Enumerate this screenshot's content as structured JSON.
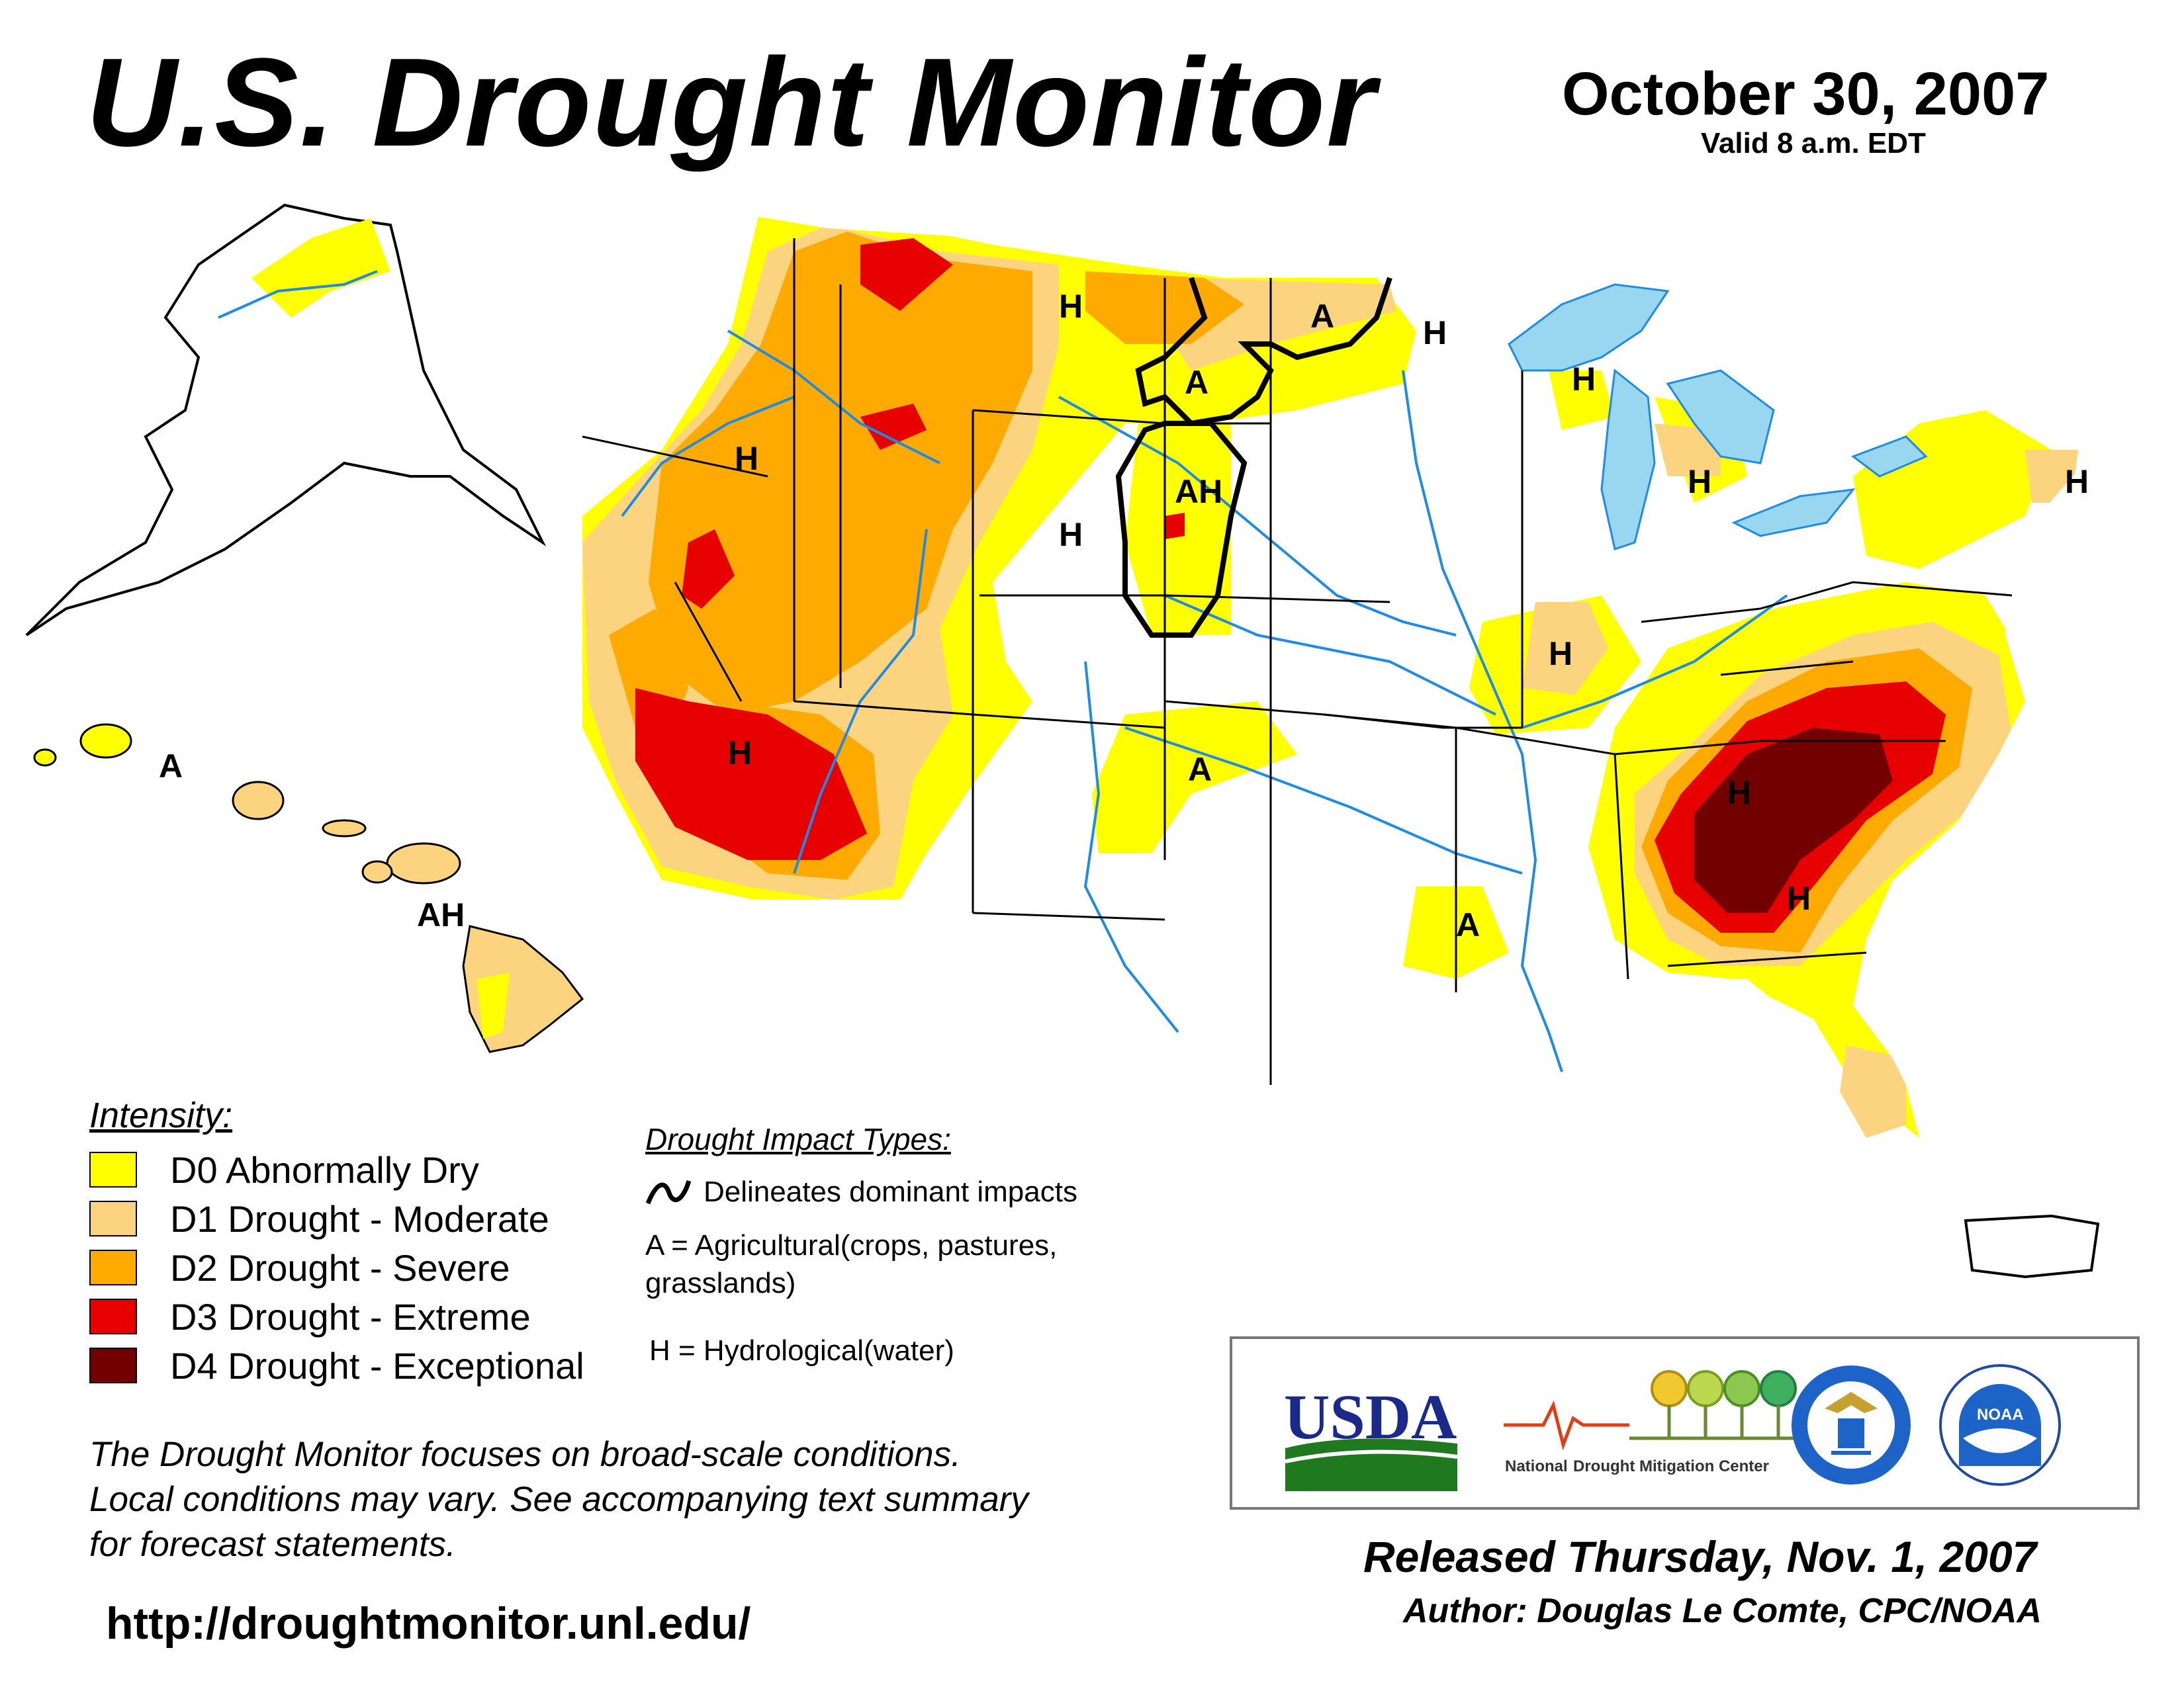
{
  "header": {
    "title": "U.S. Drought Monitor",
    "date": "October 30, 2007",
    "valid": "Valid 8 a.m. EDT"
  },
  "colors": {
    "d0": "#ffff00",
    "d1": "#fcd37f",
    "d2": "#ffaa00",
    "d3": "#e60000",
    "d4": "#730000",
    "water": "#99d7f0",
    "rivers": "#1e8ce6",
    "counties": "#a8a8a8"
  },
  "legend": {
    "title": "Intensity:",
    "items": [
      {
        "label": "D0 Abnormally Dry",
        "color": "#ffff00"
      },
      {
        "label": "D1 Drought - Moderate",
        "color": "#fcd37f"
      },
      {
        "label": "D2 Drought - Severe",
        "color": "#ffaa00"
      },
      {
        "label": "D3 Drought - Extreme",
        "color": "#e60000"
      },
      {
        "label": "D4 Drought - Exceptional",
        "color": "#730000"
      }
    ]
  },
  "impact": {
    "title": "Drought Impact Types:",
    "delineates": "Delineates dominant impacts",
    "ag_line1": "A = Agricultural(crops, pastures,",
    "ag_line2": "grasslands)",
    "hydro": "H = Hydrological(water)"
  },
  "map_labels": {
    "pacific_nw": "H",
    "montana": "H",
    "nd_west": "A",
    "nd_east": "A",
    "mn_north": "H",
    "sd": "AH",
    "wyoming": "H",
    "wisconsin": "H",
    "michigan": "H",
    "new_england": "H",
    "illinois": "H",
    "nevada_arizona": "H",
    "kansas_ok": "A",
    "louisiana": "A",
    "southeast": "H",
    "georgia": "H",
    "hawaii_west": "A",
    "hawaii_east": "AH"
  },
  "note": {
    "line1": "The Drought Monitor focuses on broad-scale conditions.",
    "line2": "Local conditions may vary. See accompanying text summary",
    "line3": "for forecast statements."
  },
  "url": "http://droughtmonitor.unl.edu/",
  "logos": {
    "usda": "USDA",
    "ndmc_1": "National",
    "ndmc_2": "Drought Mitigation Center",
    "noaa": "NOAA"
  },
  "footer": {
    "released": "Released Thursday, Nov. 1, 2007",
    "author": "Author: Douglas Le Comte, CPC/NOAA"
  }
}
